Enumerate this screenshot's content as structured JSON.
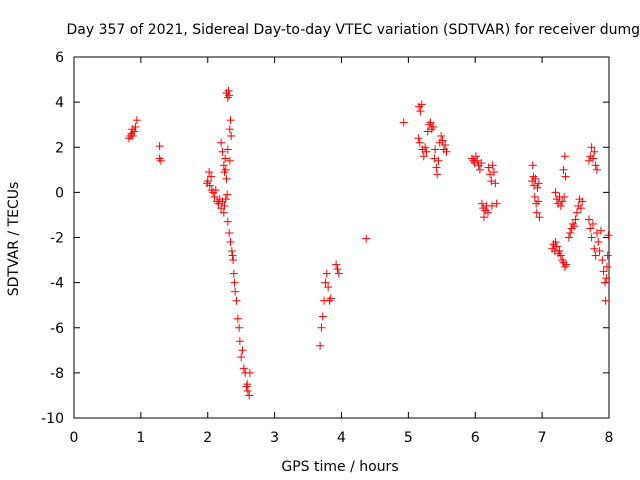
{
  "chart_data": {
    "type": "scatter",
    "title": "Day 357 of 2021, Sidereal Day-to-day VTEC variation (SDTVAR) for receiver dumg",
    "xlabel": "GPS time / hours",
    "ylabel": "SDTVAR / TECUs",
    "xlim": [
      0,
      8
    ],
    "ylim": [
      -10,
      6
    ],
    "xticks": [
      0,
      1,
      2,
      3,
      4,
      5,
      6,
      7,
      8
    ],
    "yticks": [
      -10,
      -8,
      -6,
      -4,
      -2,
      0,
      2,
      4,
      6
    ],
    "xtick_labels": [
      "0",
      "1",
      "2",
      "3",
      "4",
      "5",
      "6",
      "7",
      "8"
    ],
    "ytick_labels": [
      "-10",
      "-8",
      "-6",
      "-4",
      "-2",
      "0",
      "2",
      "4",
      "6"
    ],
    "marker": "+",
    "marker_color": "#ff0000",
    "grid": false,
    "series": [
      {
        "name": "SDTVAR",
        "points": [
          [
            0.82,
            2.4
          ],
          [
            0.84,
            2.5
          ],
          [
            0.86,
            2.6
          ],
          [
            0.88,
            2.5
          ],
          [
            0.9,
            2.7
          ],
          [
            0.92,
            2.9
          ],
          [
            0.94,
            3.2
          ],
          [
            0.87,
            2.8
          ],
          [
            1.28,
            2.05
          ],
          [
            1.28,
            1.5
          ],
          [
            1.3,
            1.4
          ],
          [
            1.99,
            0.4
          ],
          [
            2.0,
            0.5
          ],
          [
            2.02,
            0.9
          ],
          [
            2.03,
            0.3
          ],
          [
            2.05,
            0.7
          ],
          [
            2.06,
            0.1
          ],
          [
            2.08,
            0.0
          ],
          [
            2.1,
            -0.2
          ],
          [
            2.12,
            0.1
          ],
          [
            2.14,
            -0.4
          ],
          [
            2.16,
            -0.5
          ],
          [
            2.18,
            -0.3
          ],
          [
            2.2,
            -0.7
          ],
          [
            2.22,
            -0.4
          ],
          [
            2.24,
            -0.9
          ],
          [
            2.25,
            -0.6
          ],
          [
            2.27,
            -0.3
          ],
          [
            2.2,
            2.2
          ],
          [
            2.22,
            1.8
          ],
          [
            2.24,
            1.2
          ],
          [
            2.25,
            0.9
          ],
          [
            2.26,
            1.5
          ],
          [
            2.27,
            1.0
          ],
          [
            2.28,
            0.6
          ],
          [
            2.3,
            1.9
          ],
          [
            2.29,
            -0.1
          ],
          [
            2.28,
            4.4
          ],
          [
            2.3,
            4.2
          ],
          [
            2.31,
            4.5
          ],
          [
            2.32,
            4.3
          ],
          [
            2.33,
            2.8
          ],
          [
            2.34,
            3.2
          ],
          [
            2.35,
            2.5
          ],
          [
            2.33,
            1.4
          ],
          [
            2.3,
            -1.3
          ],
          [
            2.32,
            -1.8
          ],
          [
            2.34,
            -2.2
          ],
          [
            2.36,
            -2.6
          ],
          [
            2.38,
            -3.0
          ],
          [
            2.37,
            -2.8
          ],
          [
            2.39,
            -3.6
          ],
          [
            2.4,
            -4.0
          ],
          [
            2.41,
            -4.4
          ],
          [
            2.43,
            -4.8
          ],
          [
            2.45,
            -5.6
          ],
          [
            2.47,
            -6.0
          ],
          [
            2.48,
            -6.6
          ],
          [
            2.5,
            -7.3
          ],
          [
            2.52,
            -7.0
          ],
          [
            2.54,
            -7.8
          ],
          [
            2.56,
            -8.0
          ],
          [
            2.58,
            -8.6
          ],
          [
            2.6,
            -8.8
          ],
          [
            2.62,
            -9.0
          ],
          [
            2.63,
            -8.0
          ],
          [
            2.59,
            -8.5
          ],
          [
            3.68,
            -6.8
          ],
          [
            3.7,
            -6.0
          ],
          [
            3.72,
            -5.5
          ],
          [
            3.74,
            -4.8
          ],
          [
            3.76,
            -4.0
          ],
          [
            3.78,
            -3.6
          ],
          [
            3.8,
            -4.2
          ],
          [
            3.82,
            -4.8
          ],
          [
            3.84,
            -4.7
          ],
          [
            3.92,
            -3.2
          ],
          [
            3.94,
            -3.4
          ],
          [
            3.96,
            -3.6
          ],
          [
            4.37,
            -2.05
          ],
          [
            4.93,
            3.1
          ],
          [
            5.15,
            2.4
          ],
          [
            5.16,
            3.8
          ],
          [
            5.17,
            2.2
          ],
          [
            5.18,
            3.6
          ],
          [
            5.2,
            3.9
          ],
          [
            5.21,
            1.9
          ],
          [
            5.23,
            1.6
          ],
          [
            5.25,
            2.0
          ],
          [
            5.27,
            1.8
          ],
          [
            5.29,
            2.7
          ],
          [
            5.31,
            3.0
          ],
          [
            5.33,
            3.1
          ],
          [
            5.35,
            2.8
          ],
          [
            5.37,
            2.9
          ],
          [
            5.39,
            1.5
          ],
          [
            5.4,
            1.9
          ],
          [
            5.42,
            1.1
          ],
          [
            5.43,
            0.8
          ],
          [
            5.45,
            1.4
          ],
          [
            5.47,
            2.2
          ],
          [
            5.49,
            2.5
          ],
          [
            5.51,
            2.3
          ],
          [
            5.53,
            1.9
          ],
          [
            5.55,
            2.1
          ],
          [
            5.57,
            1.8
          ],
          [
            5.95,
            1.5
          ],
          [
            5.97,
            1.4
          ],
          [
            5.99,
            1.3
          ],
          [
            6.01,
            1.6
          ],
          [
            6.03,
            1.4
          ],
          [
            6.05,
            1.2
          ],
          [
            6.07,
            1.0
          ],
          [
            6.09,
            1.3
          ],
          [
            6.1,
            -0.5
          ],
          [
            6.12,
            -0.7
          ],
          [
            6.13,
            -1.1
          ],
          [
            6.15,
            -0.8
          ],
          [
            6.17,
            -0.6
          ],
          [
            6.19,
            -0.9
          ],
          [
            6.2,
            1.1
          ],
          [
            6.22,
            0.8
          ],
          [
            6.24,
            0.5
          ],
          [
            6.26,
            1.2
          ],
          [
            6.28,
            0.9
          ],
          [
            6.3,
            0.4
          ],
          [
            6.32,
            -0.5
          ],
          [
            6.25,
            -0.6
          ],
          [
            6.85,
            0.5
          ],
          [
            6.86,
            1.2
          ],
          [
            6.87,
            0.7
          ],
          [
            6.88,
            0.3
          ],
          [
            6.89,
            -0.2
          ],
          [
            6.9,
            0.6
          ],
          [
            6.91,
            -0.5
          ],
          [
            6.92,
            -0.9
          ],
          [
            6.93,
            0.2
          ],
          [
            6.94,
            -0.4
          ],
          [
            6.95,
            0.4
          ],
          [
            6.96,
            -1.1
          ],
          [
            7.15,
            -2.5
          ],
          [
            7.17,
            -2.3
          ],
          [
            7.19,
            -2.6
          ],
          [
            7.2,
            -2.2
          ],
          [
            7.22,
            -2.4
          ],
          [
            7.24,
            -2.7
          ],
          [
            7.26,
            -2.6
          ],
          [
            7.28,
            -2.8
          ],
          [
            7.3,
            -3.0
          ],
          [
            7.32,
            -3.1
          ],
          [
            7.34,
            -3.3
          ],
          [
            7.36,
            -3.2
          ],
          [
            7.2,
            0.0
          ],
          [
            7.22,
            -0.3
          ],
          [
            7.24,
            -0.5
          ],
          [
            7.26,
            -0.2
          ],
          [
            7.28,
            -0.6
          ],
          [
            7.3,
            -0.4
          ],
          [
            7.32,
            1.0
          ],
          [
            7.34,
            1.6
          ],
          [
            7.35,
            0.7
          ],
          [
            7.33,
            -0.2
          ],
          [
            7.4,
            -2.0
          ],
          [
            7.42,
            -1.8
          ],
          [
            7.44,
            -1.6
          ],
          [
            7.46,
            -1.4
          ],
          [
            7.48,
            -1.5
          ],
          [
            7.5,
            -1.2
          ],
          [
            7.52,
            -0.9
          ],
          [
            7.54,
            -0.6
          ],
          [
            7.56,
            -0.3
          ],
          [
            7.58,
            -0.7
          ],
          [
            7.6,
            -0.4
          ],
          [
            7.7,
            1.4
          ],
          [
            7.72,
            1.6
          ],
          [
            7.74,
            2.0
          ],
          [
            7.76,
            1.5
          ],
          [
            7.78,
            1.8
          ],
          [
            7.8,
            1.2
          ],
          [
            7.82,
            1.0
          ],
          [
            7.7,
            -1.2
          ],
          [
            7.72,
            -1.6
          ],
          [
            7.74,
            -2.0
          ],
          [
            7.76,
            -1.4
          ],
          [
            7.78,
            -2.5
          ],
          [
            7.8,
            -2.8
          ],
          [
            7.82,
            -1.8
          ],
          [
            7.84,
            -2.2
          ],
          [
            7.86,
            -2.6
          ],
          [
            7.88,
            -1.7
          ],
          [
            7.9,
            -3.0
          ],
          [
            7.92,
            -3.5
          ],
          [
            7.94,
            -4.0
          ],
          [
            7.95,
            -4.8
          ],
          [
            7.96,
            -3.8
          ],
          [
            7.97,
            -3.3
          ],
          [
            7.98,
            -2.8
          ],
          [
            7.99,
            -1.9
          ]
        ]
      }
    ]
  }
}
